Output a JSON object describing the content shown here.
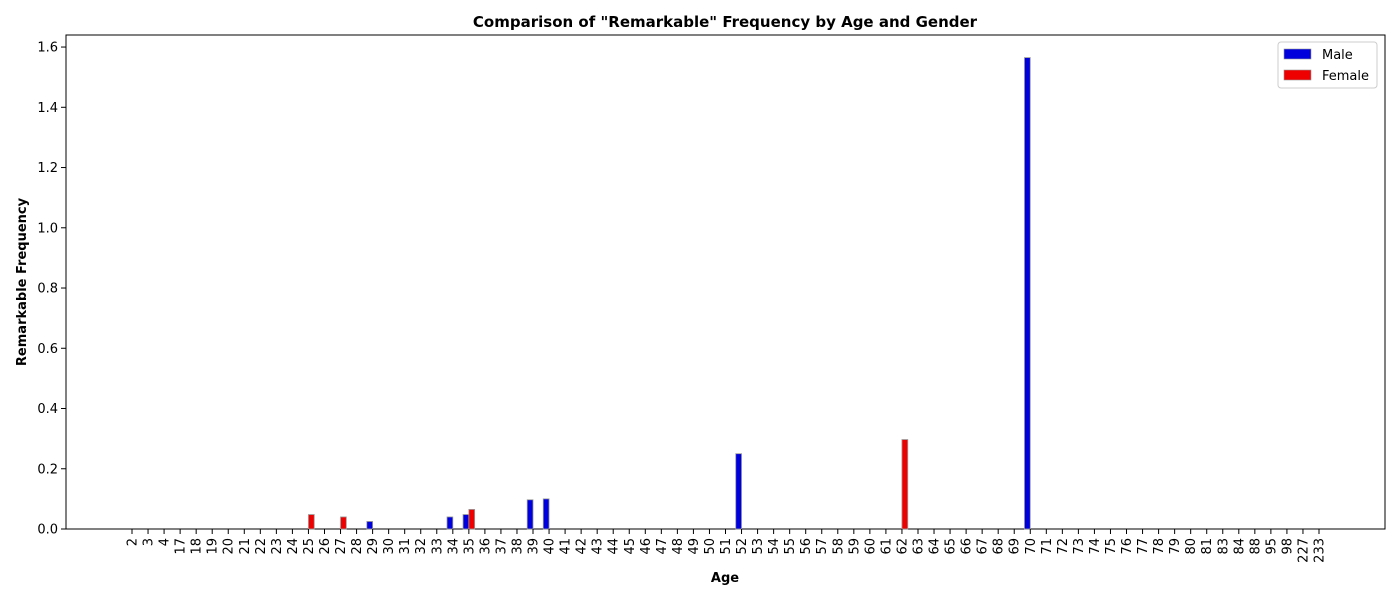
{
  "chart_data": {
    "type": "bar",
    "title": "Comparison of \"Remarkable\" Frequency by Age and Gender",
    "xlabel": "Age",
    "ylabel": "Remarkable Frequency",
    "ylim": [
      0,
      1.64
    ],
    "yticks": [
      "0.0",
      "0.2",
      "0.4",
      "0.6",
      "0.8",
      "1.0",
      "1.2",
      "1.4",
      "1.6"
    ],
    "legend_position": "top-right",
    "categories": [
      "2",
      "3",
      "4",
      "17",
      "18",
      "19",
      "20",
      "21",
      "22",
      "23",
      "24",
      "25",
      "26",
      "27",
      "28",
      "29",
      "30",
      "31",
      "32",
      "33",
      "34",
      "35",
      "36",
      "37",
      "38",
      "39",
      "40",
      "41",
      "42",
      "43",
      "44",
      "45",
      "46",
      "47",
      "48",
      "49",
      "50",
      "51",
      "52",
      "53",
      "54",
      "55",
      "56",
      "57",
      "58",
      "59",
      "60",
      "61",
      "62",
      "63",
      "64",
      "65",
      "66",
      "67",
      "68",
      "69",
      "70",
      "71",
      "72",
      "73",
      "74",
      "75",
      "76",
      "77",
      "78",
      "79",
      "80",
      "81",
      "83",
      "84",
      "88",
      "95",
      "98",
      "227",
      "233"
    ],
    "series": [
      {
        "name": "Male",
        "color": "#0000dd",
        "values": [
          0,
          0,
          0,
          0,
          0,
          0,
          0,
          0,
          0,
          0,
          0,
          0,
          0,
          0,
          0,
          0.025,
          0,
          0,
          0,
          0,
          0.04,
          0.048,
          0,
          0,
          0,
          0.097,
          0.1,
          0,
          0,
          0,
          0,
          0,
          0,
          0,
          0,
          0,
          0,
          0,
          0.25,
          0,
          0,
          0,
          0,
          0,
          0,
          0,
          0,
          0,
          0,
          0,
          0,
          0,
          0,
          0,
          0,
          0,
          1.565,
          0,
          0,
          0,
          0,
          0,
          0,
          0,
          0,
          0,
          0,
          0,
          0,
          0,
          0,
          0,
          0,
          0,
          0
        ]
      },
      {
        "name": "Female",
        "color": "#ee0000",
        "values": [
          0,
          0,
          0,
          0,
          0,
          0,
          0,
          0,
          0,
          0,
          0,
          0.048,
          0,
          0.04,
          0,
          0,
          0,
          0,
          0,
          0,
          0,
          0.065,
          0,
          0,
          0,
          0,
          0,
          0,
          0,
          0,
          0,
          0,
          0,
          0,
          0,
          0,
          0,
          0,
          0,
          0,
          0,
          0,
          0,
          0,
          0,
          0,
          0,
          0,
          0.297,
          0,
          0,
          0,
          0,
          0,
          0,
          0,
          0,
          0,
          0,
          0,
          0,
          0,
          0,
          0,
          0,
          0,
          0,
          0,
          0,
          0,
          0,
          0,
          0,
          0,
          0
        ]
      }
    ]
  }
}
